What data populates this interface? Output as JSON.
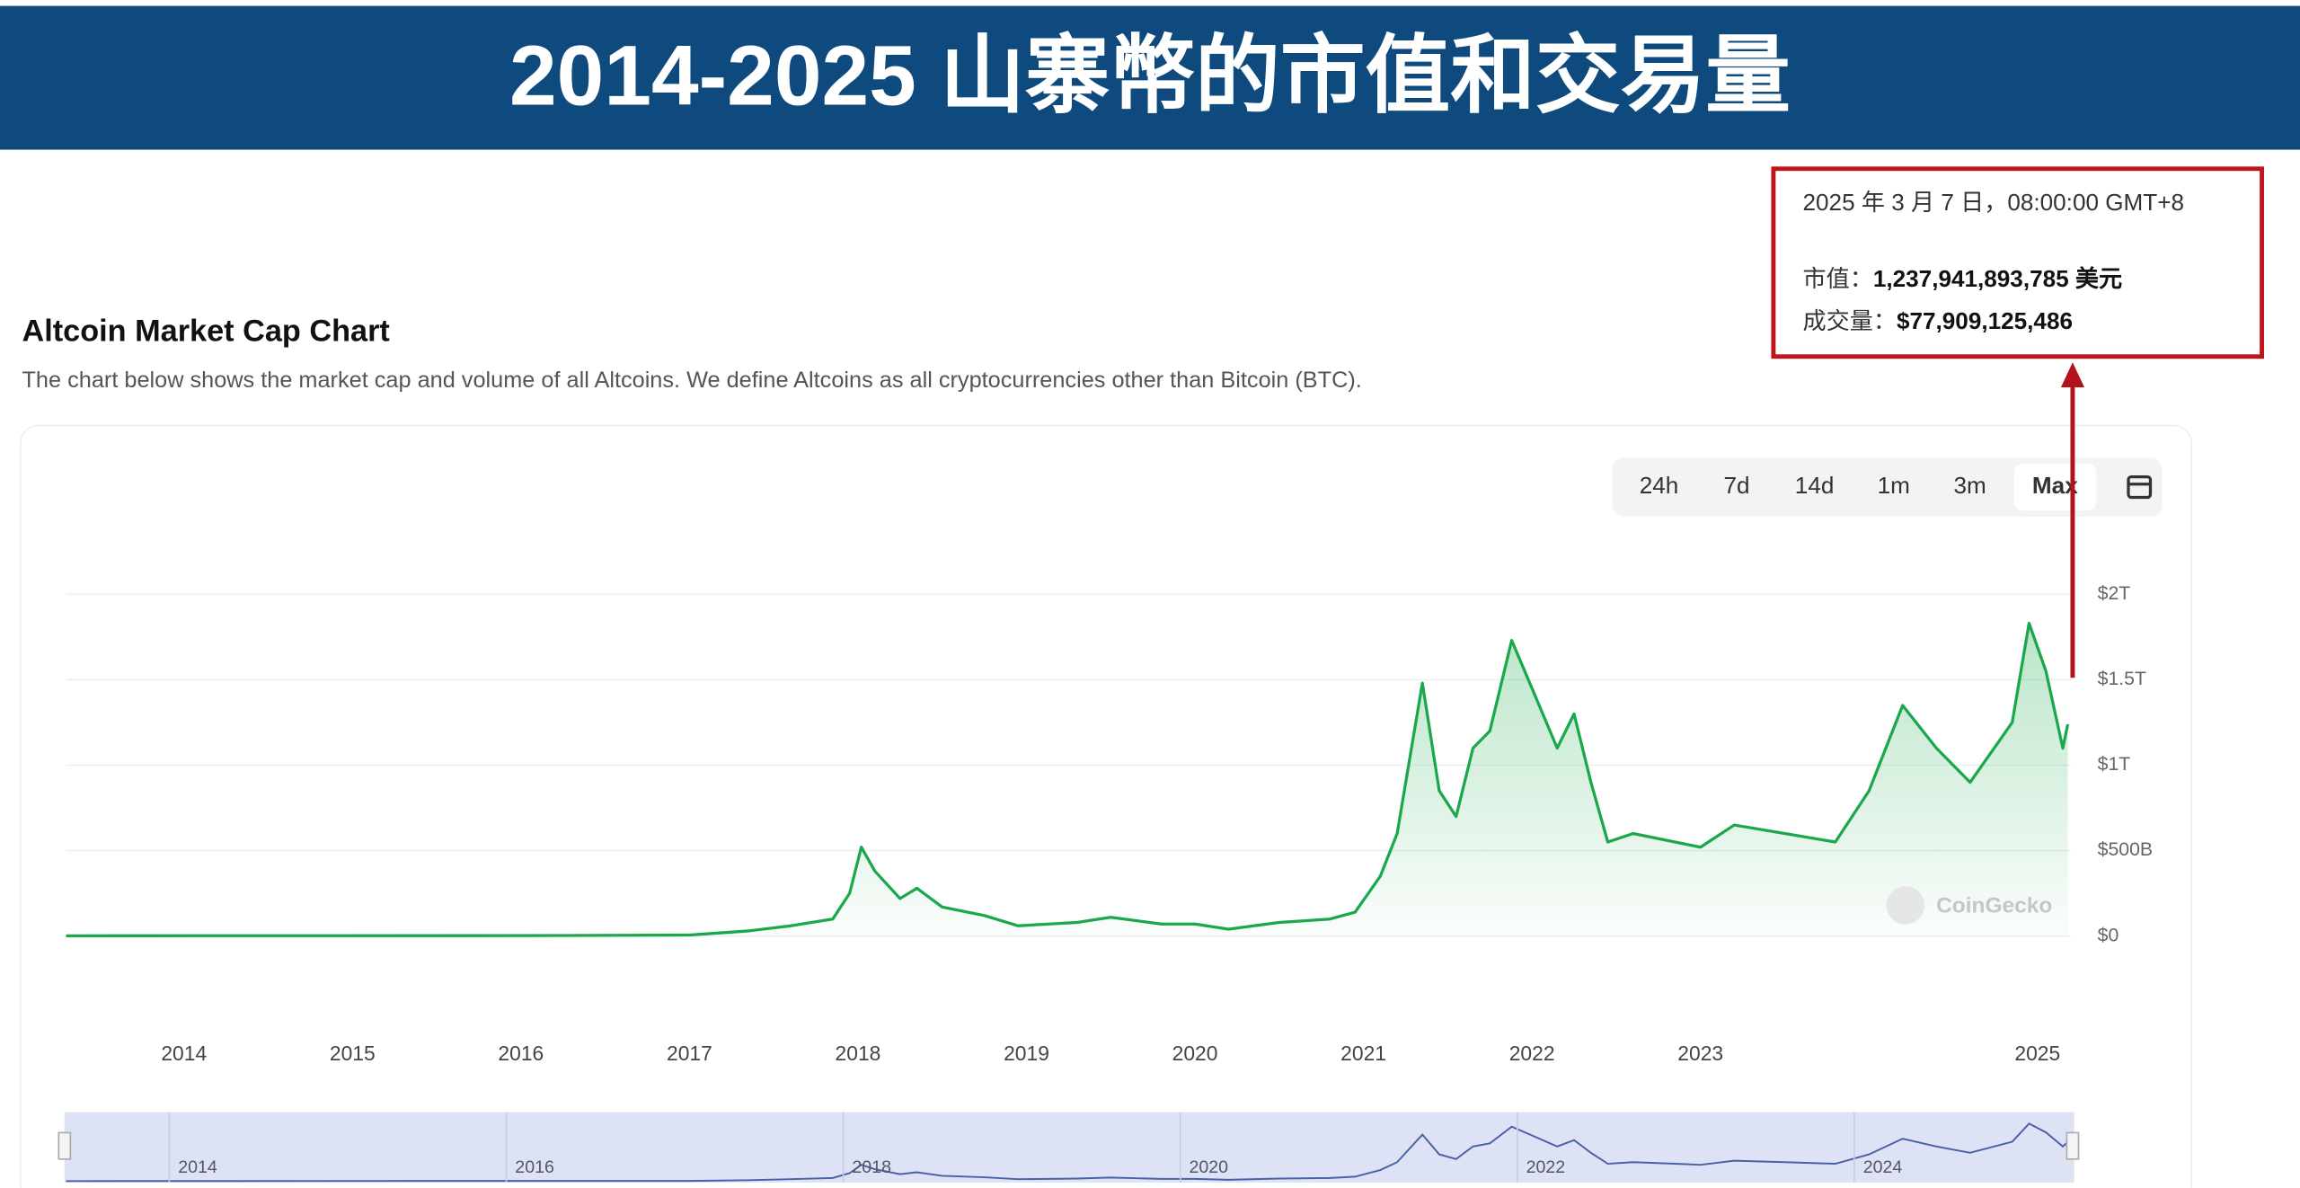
{
  "page": {
    "header": "2014-2025 山寨幣的市值和交易量",
    "tooltip": {
      "date": "2025 年 3 月 7 日，08:00:00 GMT+8",
      "cap_label": "市值：",
      "cap_value": "1,237,941,893,785 美元",
      "volume_label": "成交量：",
      "volume_value": "$77,909,125,486"
    },
    "range_buttons": [
      "24h",
      "7d",
      "14d",
      "1m",
      "3m",
      "Max"
    ],
    "watermark": "CoinGecko"
  },
  "chart_data": {
    "type": "line",
    "title": "Altcoin Market Cap Chart",
    "subtitle": "The chart below shows the market cap and volume of all Altcoins. We define Altcoins as all cryptocurrencies other than Bitcoin (BTC).",
    "x": [
      2013.3,
      2016.0,
      2017.0,
      2017.35,
      2017.6,
      2017.85,
      2017.95,
      2018.02,
      2018.1,
      2018.25,
      2018.35,
      2018.5,
      2018.75,
      2018.95,
      2019.3,
      2019.5,
      2019.8,
      2020.0,
      2020.2,
      2020.5,
      2020.8,
      2020.95,
      2021.1,
      2021.2,
      2021.35,
      2021.45,
      2021.55,
      2021.65,
      2021.75,
      2021.88,
      2022.0,
      2022.15,
      2022.25,
      2022.35,
      2022.45,
      2022.6,
      2022.85,
      2023.0,
      2023.2,
      2023.5,
      2023.8,
      2024.0,
      2024.2,
      2024.4,
      2024.6,
      2024.85,
      2024.95,
      2025.05,
      2025.15,
      2025.18
    ],
    "series": [
      {
        "name": "Market Cap",
        "color": "#1aa84a",
        "values": [
          2000000000,
          3000000000,
          6000000000,
          30000000000,
          60000000000,
          100000000000,
          250000000000,
          520000000000,
          380000000000,
          220000000000,
          280000000000,
          170000000000,
          120000000000,
          60000000000,
          80000000000,
          110000000000,
          70000000000,
          70000000000,
          40000000000,
          80000000000,
          100000000000,
          140000000000,
          350000000000,
          600000000000,
          1480000000000,
          850000000000,
          700000000000,
          1100000000000,
          1200000000000,
          1730000000000,
          1450000000000,
          1100000000000,
          1300000000000,
          900000000000,
          550000000000,
          600000000000,
          550000000000,
          520000000000,
          650000000000,
          600000000000,
          550000000000,
          850000000000,
          1350000000000,
          1100000000000,
          900000000000,
          1250000000000,
          1830000000000,
          1550000000000,
          1100000000000,
          1240000000000
        ]
      }
    ],
    "xlim": [
      2013.3,
      2025.2
    ],
    "xticks": [
      2014,
      2015,
      2016,
      2017,
      2018,
      2019,
      2020,
      2021,
      2022,
      2023,
      2025
    ],
    "ylim": [
      0,
      2100000000000
    ],
    "yticks": [
      {
        "value": 0,
        "label": "$0"
      },
      {
        "value": 500000000000,
        "label": "$500B"
      },
      {
        "value": 1000000000000,
        "label": "$1T"
      },
      {
        "value": 1500000000000,
        "label": "$1.5T"
      },
      {
        "value": 2000000000000,
        "label": "$2T"
      }
    ],
    "grid": true,
    "navigator_xticks": [
      2014,
      2016,
      2018,
      2020,
      2022,
      2024
    ]
  }
}
